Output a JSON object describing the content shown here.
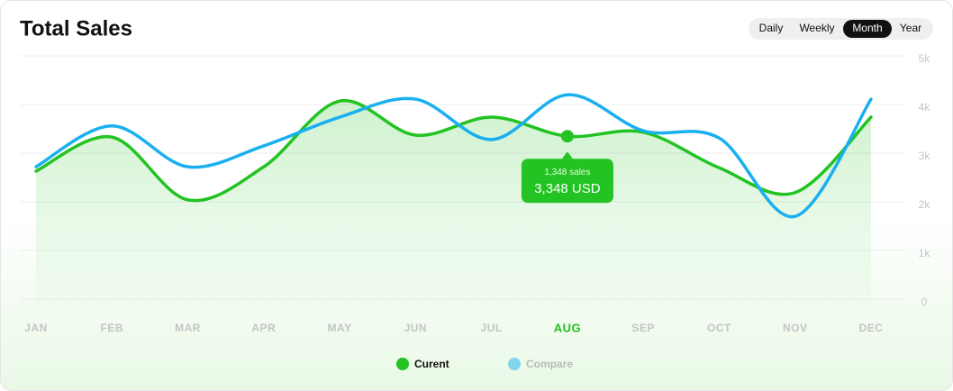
{
  "chart_data": {
    "type": "line",
    "title": "Total Sales",
    "tabs": [
      "Daily",
      "Weekly",
      "Month",
      "Year"
    ],
    "categories": [
      "JAN",
      "FEB",
      "MAR",
      "APR",
      "MAY",
      "JUN",
      "JUL",
      "AUG",
      "SEP",
      "OCT",
      "NOV",
      "DEC"
    ],
    "series": [
      {
        "name": "Curent",
        "color": "#22c322",
        "values": [
          2630,
          3330,
          2040,
          2720,
          4070,
          3370,
          3740,
          3348,
          3430,
          2700,
          2190,
          3740
        ]
      },
      {
        "name": "Compare",
        "color": "#1ab0f0",
        "values": [
          2720,
          3560,
          2720,
          3150,
          3740,
          4110,
          3280,
          4200,
          3460,
          3310,
          1700,
          4110
        ]
      }
    ],
    "tooltip": {
      "sales": "1,348 sales",
      "amount": "3,348 USD"
    },
    "ylim": [
      0,
      5000
    ],
    "yticks": [
      0,
      {
        "value": 1000,
        "label": "1k"
      },
      {
        "value": 2000,
        "label": "2k"
      },
      {
        "value": 3000,
        "label": "3k"
      },
      {
        "value": 4000,
        "label": "4k"
      },
      {
        "value": 5000,
        "label": "5k"
      }
    ],
    "grid": true
  }
}
